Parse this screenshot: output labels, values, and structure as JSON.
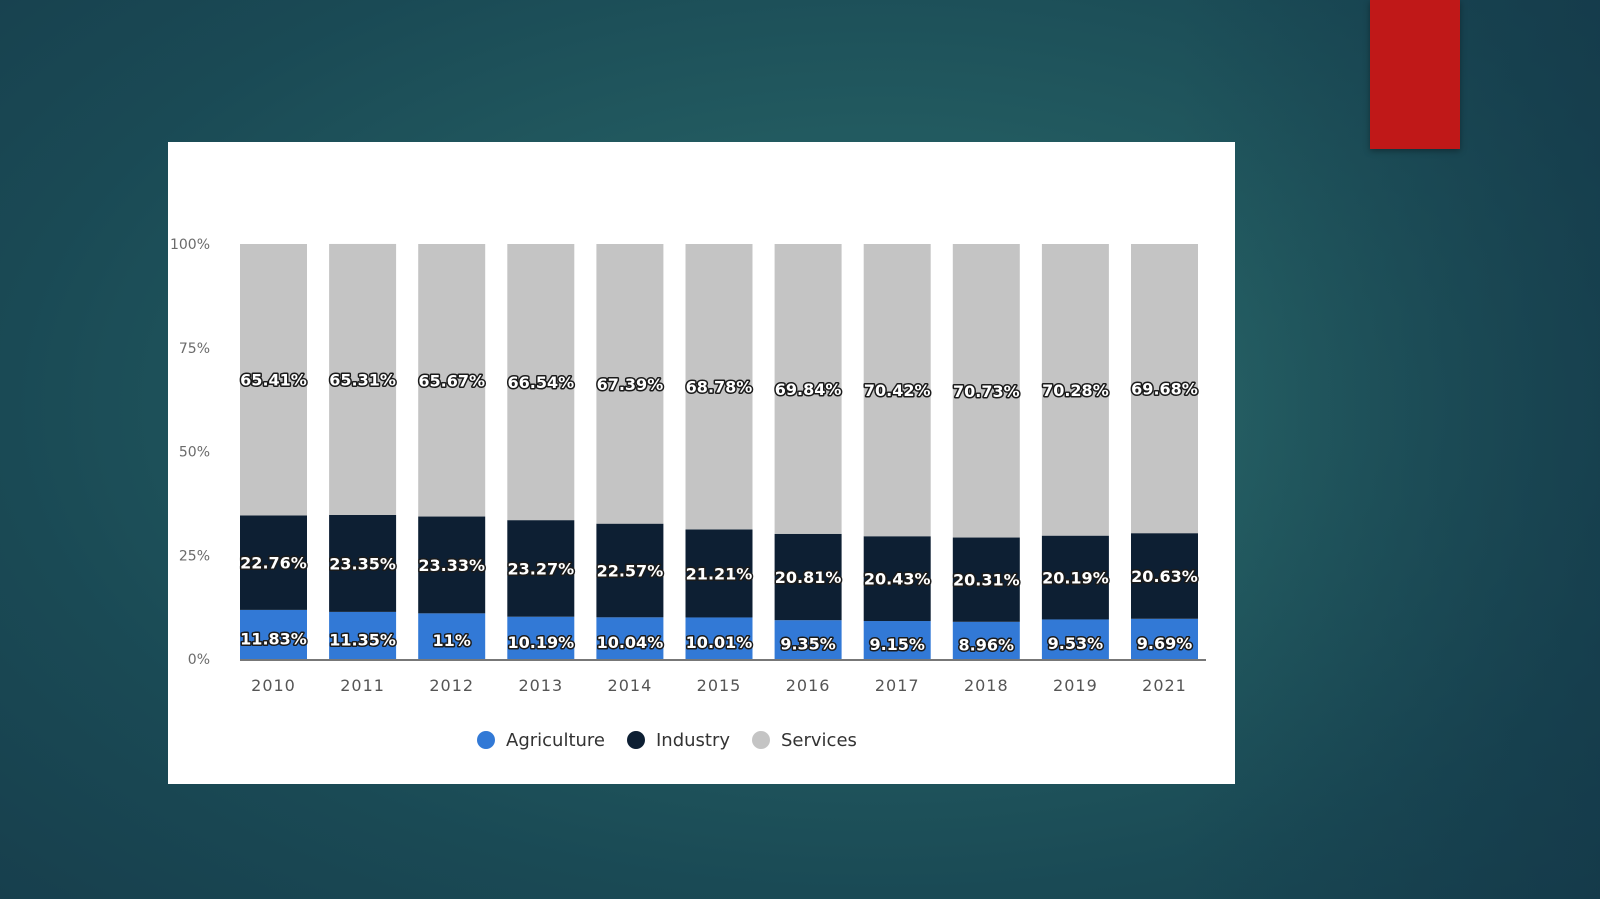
{
  "colors": {
    "agriculture": "#3279d6",
    "industry": "#0d1f33",
    "services": "#c4c4c4",
    "accent": "#c01818",
    "axis": "#4a4a4a"
  },
  "chart_data": {
    "type": "bar",
    "stacked": true,
    "categories": [
      "2010",
      "2011",
      "2012",
      "2013",
      "2014",
      "2015",
      "2016",
      "2017",
      "2018",
      "2019",
      "2021"
    ],
    "series": [
      {
        "name": "Agriculture",
        "values": [
          11.83,
          11.35,
          11,
          10.19,
          10.04,
          10.01,
          9.35,
          9.15,
          8.96,
          9.53,
          9.69
        ],
        "labels": [
          "11.83%",
          "11.35%",
          "11%",
          "10.19%",
          "10.04%",
          "10.01%",
          "9.35%",
          "9.15%",
          "8.96%",
          "9.53%",
          "9.69%"
        ]
      },
      {
        "name": "Industry",
        "values": [
          22.76,
          23.35,
          23.33,
          23.27,
          22.57,
          21.21,
          20.81,
          20.43,
          20.31,
          20.19,
          20.63
        ],
        "labels": [
          "22.76%",
          "23.35%",
          "23.33%",
          "23.27%",
          "22.57%",
          "21.21%",
          "20.81%",
          "20.43%",
          "20.31%",
          "20.19%",
          "20.63%"
        ]
      },
      {
        "name": "Services",
        "values": [
          65.41,
          65.31,
          65.67,
          66.54,
          67.39,
          68.78,
          69.84,
          70.42,
          70.73,
          70.28,
          69.68
        ],
        "labels": [
          "65.41%",
          "65.31%",
          "65.67%",
          "66.54%",
          "67.39%",
          "68.78%",
          "69.84%",
          "70.42%",
          "70.73%",
          "70.28%",
          "69.68%"
        ]
      }
    ],
    "yticks": [
      "0%",
      "25%",
      "50%",
      "75%",
      "100%"
    ],
    "ylim": [
      0,
      100
    ],
    "grid": false,
    "legend": "bottom-center",
    "title": "",
    "xlabel": "",
    "ylabel": ""
  }
}
